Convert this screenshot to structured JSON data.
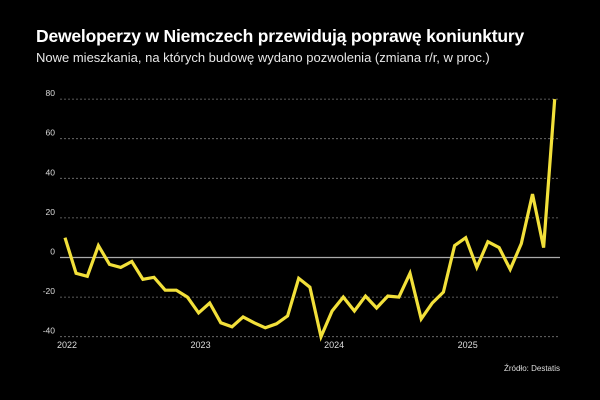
{
  "chart_data": {
    "type": "line",
    "title": "Deweloperzy w Niemczech przewidują poprawę koniunktury",
    "subtitle": "Nowe mieszkania, na których budowę wydano pozwolenia (zmiana r/r, w proc.)",
    "source": "Źródło: Destatis",
    "xlabel": "",
    "ylabel": "",
    "ylim": [
      -40,
      80
    ],
    "yticks": [
      80,
      60,
      40,
      20,
      0,
      -20,
      -40
    ],
    "xticks": [
      "2022",
      "2023",
      "2024",
      "2025"
    ],
    "x_start": "2022-01",
    "x_end": "2025-09",
    "frequency": "monthly",
    "grid": true,
    "line_color": "#f2e03a",
    "series": [
      {
        "values": [
          10,
          -8,
          -9.5,
          6,
          -3.5,
          -5,
          -2,
          -11,
          -10,
          -16.5,
          -16.5,
          -20,
          -28,
          -23,
          -33,
          -35,
          -30,
          -33,
          -35.5,
          -33.5,
          -29.5,
          -10.5,
          -15,
          -40,
          -27,
          -20,
          -27,
          -19.5,
          -25.5,
          -19.5,
          -20,
          -8,
          -31,
          -23,
          -17.5,
          6,
          10,
          -5,
          8,
          5,
          -6,
          7,
          32,
          5,
          80
        ]
      }
    ]
  }
}
